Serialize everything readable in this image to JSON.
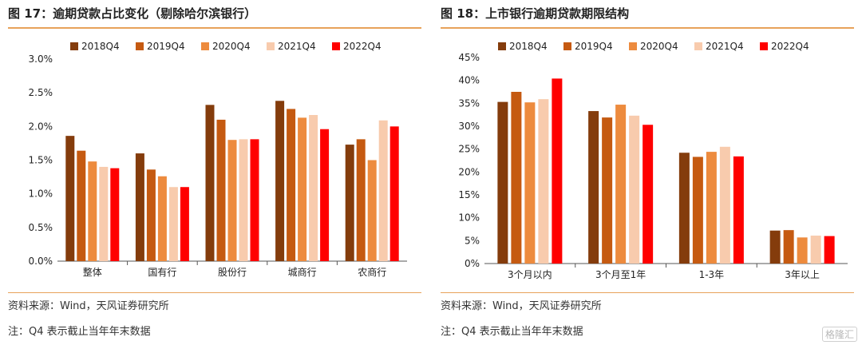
{
  "chart_data": [
    {
      "type": "bar",
      "title": "图 17：逾期贷款占比变化（剔除哈尔滨银行）",
      "categories": [
        "整体",
        "国有行",
        "股份行",
        "城商行",
        "农商行"
      ],
      "series": [
        {
          "name": "2018Q4",
          "color": "#843C0C",
          "values": [
            1.86,
            1.6,
            2.32,
            2.38,
            1.73
          ]
        },
        {
          "name": "2019Q4",
          "color": "#C55A11",
          "values": [
            1.64,
            1.36,
            2.1,
            2.26,
            1.81
          ]
        },
        {
          "name": "2020Q4",
          "color": "#ED8B3E",
          "values": [
            1.48,
            1.26,
            1.8,
            2.13,
            1.5
          ]
        },
        {
          "name": "2021Q4",
          "color": "#F8CBAD",
          "values": [
            1.4,
            1.1,
            1.81,
            2.17,
            2.09
          ]
        },
        {
          "name": "2022Q4",
          "color": "#FF0000",
          "values": [
            1.38,
            1.1,
            1.81,
            1.96,
            2.0
          ]
        }
      ],
      "ylim": [
        0,
        3.0
      ],
      "yticks": [
        "0.0%",
        "0.5%",
        "1.0%",
        "1.5%",
        "2.0%",
        "2.5%",
        "3.0%"
      ],
      "xlabel": "",
      "ylabel": "",
      "legend": "top-left"
    },
    {
      "type": "bar",
      "title": "图 18：上市银行逾期贷款期限结构",
      "categories": [
        "3个月以内",
        "3个月至1年",
        "1-3年",
        "3年以上"
      ],
      "series": [
        {
          "name": "2018Q4",
          "color": "#843C0C",
          "values": [
            35.3,
            33.3,
            24.2,
            7.2
          ]
        },
        {
          "name": "2019Q4",
          "color": "#C55A11",
          "values": [
            37.5,
            31.9,
            23.3,
            7.3
          ]
        },
        {
          "name": "2020Q4",
          "color": "#ED8B3E",
          "values": [
            35.2,
            34.7,
            24.4,
            5.7
          ]
        },
        {
          "name": "2021Q4",
          "color": "#F8CBAD",
          "values": [
            35.9,
            32.3,
            25.5,
            6.1
          ]
        },
        {
          "name": "2022Q4",
          "color": "#FF0000",
          "values": [
            40.4,
            30.3,
            23.4,
            6.0
          ]
        }
      ],
      "ylim": [
        0,
        45
      ],
      "yticks": [
        "0%",
        "5%",
        "10%",
        "15%",
        "20%",
        "25%",
        "30%",
        "35%",
        "40%",
        "45%"
      ],
      "xlabel": "",
      "ylabel": "",
      "legend": "top-left"
    }
  ],
  "footer": {
    "source_left": "资料来源：Wind，天风证券研究所",
    "note_left": "注：Q4 表示截止当年年末数据",
    "source_right": "资料来源：Wind，天风证券研究所",
    "note_right": "注：Q4 表示截止当年年末数据"
  },
  "watermark": "格隆汇"
}
